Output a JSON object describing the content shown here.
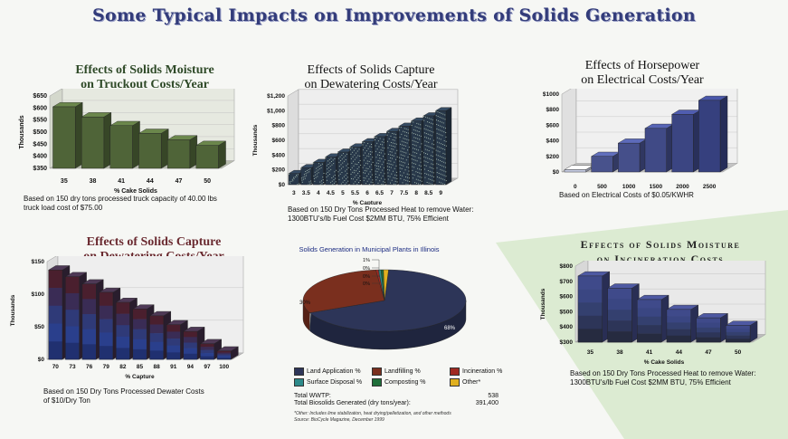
{
  "title": "Some Typical Impacts on Improvements of Solids Generation",
  "colors": {
    "title": "#333c7a",
    "olive": "#5a6a3c",
    "navy": "#2a2e5a",
    "maroon": "#4a1f2a",
    "blue": "#3a4278",
    "wedge": "#d9e8cf"
  },
  "chart_data": [
    {
      "id": "moisture-truckout",
      "type": "bar",
      "title": "Effects of Solids Moisture on Truckout Costs/Year",
      "title_lines": [
        "Effects of Solids Moisture",
        "on Truckout Costs/Year"
      ],
      "xlabel": "% Cake Solids",
      "ylabel": "Thousands",
      "categories": [
        "35",
        "38",
        "41",
        "44",
        "47",
        "50"
      ],
      "values": [
        605,
        563,
        527,
        495,
        468,
        445
      ],
      "ylim": [
        350,
        650
      ],
      "yticks": [
        "$350",
        "$400",
        "$450",
        "$500",
        "$550",
        "$600",
        "$650"
      ],
      "note": [
        "Based on 150 dry tons processed truck capacity of 40.00 lbs",
        "truck load cost of $75.00"
      ]
    },
    {
      "id": "capture-heat",
      "type": "bar",
      "title": "Effects of Solids Capture on Dewatering Costs/Year",
      "title_lines": [
        "Effects of Solids Capture",
        "on Dewatering Costs/Year"
      ],
      "xlabel": "% Capture",
      "ylabel": "Thousands",
      "categories": [
        "3",
        "3.5",
        "4",
        "4.5",
        "5",
        "5.5",
        "6",
        "6.5",
        "7",
        "7.5",
        "8",
        "8.5",
        "9"
      ],
      "values": [
        150,
        230,
        300,
        375,
        440,
        510,
        580,
        650,
        720,
        790,
        860,
        930,
        1000
      ],
      "ylim": [
        0,
        1200
      ],
      "yticks": [
        "$0",
        "$200",
        "$400",
        "$600",
        "$800",
        "$1,000",
        "$1,200"
      ],
      "note": [
        "Based on 150 Dry Tons Processed Heat to remove Water:",
        "1300BTU's/lb Fuel Cost $2MM BTU, 75% Efficient"
      ]
    },
    {
      "id": "horsepower",
      "type": "bar",
      "title": "Effects of Horsepower on Electrical Costs/Year",
      "title_lines": [
        "Effects of Horsepower",
        "on Electrical Costs/Year"
      ],
      "xlabel": "",
      "ylabel": "",
      "categories": [
        "0",
        "500",
        "1000",
        "1500",
        "2000",
        "2500"
      ],
      "values": [
        30,
        200,
        370,
        560,
        740,
        920
      ],
      "ylim": [
        0,
        1000
      ],
      "yticks": [
        "$0",
        "$200",
        "$400",
        "$600",
        "$800",
        "$1000"
      ],
      "note": [
        "Based on Electrical Costs of $0.05/KWHR"
      ]
    },
    {
      "id": "capture-dewater",
      "type": "bar",
      "title": "Effects of Solids Capture on Dewatering Costs/Year",
      "title_lines": [
        "Effects of Solids Capture",
        "on Dewatering Costs/Year"
      ],
      "xlabel": "% Capture",
      "ylabel": "Thousands",
      "categories": [
        "70",
        "73",
        "76",
        "79",
        "82",
        "85",
        "88",
        "91",
        "94",
        "97",
        "100"
      ],
      "values": [
        160,
        148,
        135,
        120,
        102,
        90,
        78,
        62,
        50,
        28,
        15
      ],
      "ylim": [
        0,
        175
      ],
      "yticks": [
        "$0",
        "$50",
        "$100",
        "$150"
      ],
      "note": [
        "Based on 150 Dry Tons Processed Dewater Costs",
        "of $10/Dry Ton"
      ]
    },
    {
      "id": "biosolids-pie",
      "type": "pie",
      "title": "Solids Generation in Municipal Plants in Illinois",
      "slices": [
        {
          "label": "Land Application %",
          "value": 68,
          "text": "68%",
          "color": "#2d3558"
        },
        {
          "label": "Landfilling %",
          "value": 30,
          "text": "30%",
          "color": "#7a2f1e"
        },
        {
          "label": "Incineration %",
          "value": 0.5,
          "text": "0%",
          "color": "#a02a22"
        },
        {
          "label": "Surface Disposal %",
          "value": 0.5,
          "text": "0%",
          "color": "#2d8a8a"
        },
        {
          "label": "Composting %",
          "value": 0.5,
          "text": "0%",
          "color": "#1f6f3a"
        },
        {
          "label": "Other*",
          "value": 1,
          "text": "1%",
          "color": "#e0b020"
        }
      ],
      "totals": [
        {
          "label": "Total WWTP:",
          "value": "538"
        },
        {
          "label": "Total Biosolids Generated (dry tons/year):",
          "value": "391,400"
        }
      ],
      "footnote": [
        "*Other: Includes lime stabilization, heat drying/pelletization, and other methods",
        "Source: BioCycle Magazine, December 1999"
      ]
    },
    {
      "id": "moisture-incineration",
      "type": "bar",
      "title": "Effects of Solids Moisture on Incineration Costs",
      "title_lines": [
        "Effects of Solids Moisture",
        "on Incineration Costs"
      ],
      "xlabel": "% Cake Solids",
      "ylabel": "Thousands",
      "categories": [
        "35",
        "38",
        "41",
        "44",
        "47",
        "50"
      ],
      "values": [
        735,
        655,
        580,
        515,
        460,
        410
      ],
      "ylim": [
        300,
        800
      ],
      "yticks": [
        "$300",
        "$400",
        "$500",
        "$600",
        "$700",
        "$800"
      ],
      "note": [
        "Based on 150 Dry Tons Processed Heat to remove Water:",
        "1300BTU's/lb Fuel Cost $2MM BTU, 75% Efficient"
      ]
    }
  ]
}
